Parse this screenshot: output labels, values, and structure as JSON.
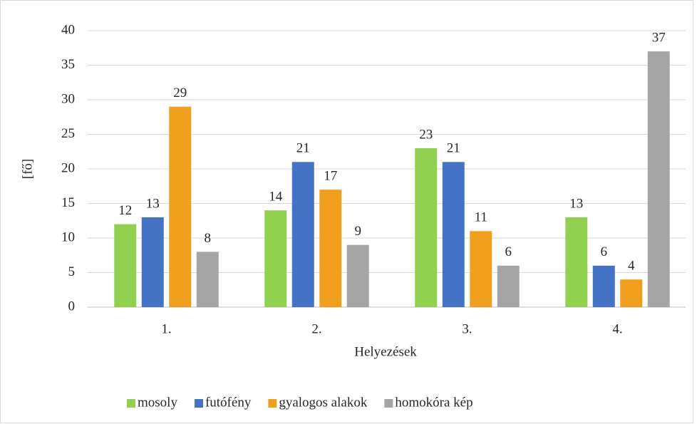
{
  "chart_data": {
    "type": "bar",
    "y_label": "[fő]",
    "x_label": "Helyezések",
    "categories": [
      "1.",
      "2.",
      "3.",
      "4."
    ],
    "series": [
      {
        "name": "mosoly",
        "color": "#92d050",
        "values": [
          12,
          14,
          23,
          13
        ]
      },
      {
        "name": "futófény",
        "color": "#4472c4",
        "values": [
          13,
          21,
          21,
          6
        ]
      },
      {
        "name": "gyalogos alakok",
        "color": "#f0a01e",
        "values": [
          29,
          17,
          11,
          4
        ]
      },
      {
        "name": "homokóra kép",
        "color": "#a5a5a5",
        "values": [
          8,
          9,
          6,
          37
        ]
      }
    ],
    "ylim": [
      0,
      40
    ],
    "yticks": [
      0,
      5,
      10,
      15,
      20,
      25,
      30,
      35,
      40
    ],
    "grid": true,
    "legend": "bottom"
  }
}
